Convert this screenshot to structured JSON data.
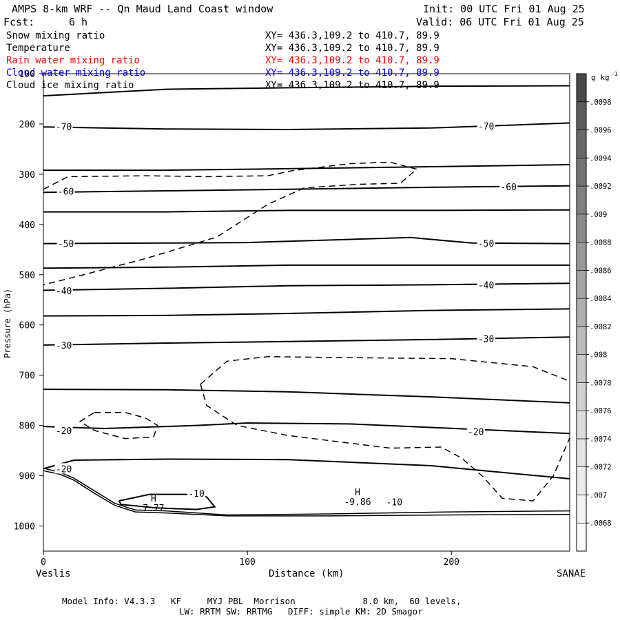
{
  "header": {
    "title": "AMPS 8-km WRF -- Qn Maud Land Coast window",
    "init": "Init: 00 UTC Fri 01 Aug 25",
    "fcst_label": "Fcst:",
    "fcst_value": "6 h",
    "valid": "Valid: 06 UTC Fri 01 Aug 25"
  },
  "fields": [
    {
      "name": "Snow mixing ratio",
      "xy": "XY= 436.3,109.2 to 410.7, 89.9",
      "color": "#000000"
    },
    {
      "name": "Temperature",
      "xy": "XY= 436.3,109.2 to 410.7, 89.9",
      "color": "#000000"
    },
    {
      "name": "Rain water mixing ratio",
      "xy": "XY= 436.3,109.2 to 410.7, 89.9",
      "color": "#ff0000"
    },
    {
      "name": "Cloud water mixing ratio",
      "xy": "XY= 436.3,109.2 to 410.7, 89.9",
      "color": "#0000ff"
    },
    {
      "name": "Cloud ice mixing ratio",
      "xy": "XY= 436.3,109.2 to 410.7, 89.9",
      "color": "#000000"
    }
  ],
  "chart_data": {
    "type": "line",
    "title": "",
    "xlabel": "Distance (km)",
    "ylabel": "Pressure (hPa)",
    "xlim": [
      0,
      258
    ],
    "ylim": [
      1050,
      100
    ],
    "x_ticks": [
      0,
      100,
      200
    ],
    "y_ticks": [
      100,
      200,
      300,
      400,
      500,
      600,
      700,
      800,
      900,
      1000
    ],
    "x_endpoints": {
      "left": "Veslis",
      "right": "SANAE"
    },
    "temperature_isotherms": [
      {
        "label": "-70",
        "points": [
          [
            0,
            144
          ],
          [
            60,
            131
          ],
          [
            120,
            128
          ],
          [
            190,
            125
          ],
          [
            258,
            124
          ]
        ]
      },
      {
        "label": "-70",
        "points": [
          [
            0,
            206
          ],
          [
            60,
            210
          ],
          [
            120,
            211
          ],
          [
            190,
            208
          ],
          [
            258,
            198
          ]
        ]
      },
      {
        "label": "",
        "points": [
          [
            0,
            292
          ],
          [
            60,
            292
          ],
          [
            120,
            289
          ],
          [
            190,
            285
          ],
          [
            258,
            281
          ]
        ]
      },
      {
        "label": "-60",
        "points": [
          [
            0,
            336
          ],
          [
            60,
            333
          ],
          [
            120,
            330
          ],
          [
            190,
            326
          ],
          [
            258,
            323
          ]
        ]
      },
      {
        "label": "",
        "points": [
          [
            0,
            375
          ],
          [
            60,
            375
          ],
          [
            120,
            372
          ],
          [
            190,
            372
          ],
          [
            258,
            371
          ]
        ]
      },
      {
        "label": "-50",
        "points": [
          [
            0,
            438
          ],
          [
            60,
            437
          ],
          [
            100,
            436
          ],
          [
            180,
            426
          ],
          [
            210,
            437
          ],
          [
            258,
            438
          ]
        ]
      },
      {
        "label": "",
        "points": [
          [
            0,
            487
          ],
          [
            60,
            485
          ],
          [
            120,
            481
          ],
          [
            190,
            481
          ],
          [
            258,
            481
          ]
        ]
      },
      {
        "label": "-40",
        "points": [
          [
            0,
            531
          ],
          [
            60,
            527
          ],
          [
            120,
            522
          ],
          [
            190,
            520
          ],
          [
            258,
            517
          ]
        ]
      },
      {
        "label": "",
        "points": [
          [
            0,
            582
          ],
          [
            60,
            581
          ],
          [
            120,
            577
          ],
          [
            190,
            571
          ],
          [
            258,
            568
          ]
        ]
      },
      {
        "label": "-30",
        "points": [
          [
            0,
            640
          ],
          [
            60,
            636
          ],
          [
            120,
            633
          ],
          [
            190,
            629
          ],
          [
            258,
            624
          ]
        ]
      },
      {
        "label": "",
        "points": [
          [
            0,
            728
          ],
          [
            60,
            729
          ],
          [
            120,
            733
          ],
          [
            190,
            743
          ],
          [
            258,
            755
          ]
        ]
      },
      {
        "label": "-20",
        "points": [
          [
            0,
            802
          ],
          [
            30,
            806
          ],
          [
            75,
            800
          ],
          [
            100,
            795
          ],
          [
            150,
            797
          ],
          [
            190,
            804
          ],
          [
            258,
            816
          ]
        ]
      },
      {
        "label": "-20",
        "points": [
          [
            0,
            886
          ],
          [
            15,
            869
          ],
          [
            60,
            867
          ],
          [
            120,
            868
          ],
          [
            190,
            880
          ],
          [
            258,
            906
          ]
        ]
      }
    ],
    "temperature_closed": [
      {
        "label": "-10",
        "points": [
          [
            37,
            950
          ],
          [
            52,
            937
          ],
          [
            70,
            937
          ],
          [
            80,
            942
          ],
          [
            84,
            962
          ],
          [
            75,
            967
          ],
          [
            55,
            964
          ],
          [
            38,
            957
          ],
          [
            37,
            950
          ]
        ]
      }
    ],
    "surface_lines": [
      {
        "points": [
          [
            0,
            885
          ],
          [
            8,
            893
          ],
          [
            15,
            905
          ],
          [
            25,
            930
          ],
          [
            35,
            955
          ],
          [
            45,
            968
          ],
          [
            60,
            970
          ],
          [
            90,
            978
          ],
          [
            140,
            976
          ],
          [
            200,
            972
          ],
          [
            258,
            970
          ]
        ]
      },
      {
        "points": [
          [
            0,
            890
          ],
          [
            8,
            897
          ],
          [
            15,
            909
          ],
          [
            25,
            935
          ],
          [
            35,
            959
          ],
          [
            45,
            972
          ],
          [
            60,
            974
          ],
          [
            90,
            980
          ],
          [
            140,
            980
          ],
          [
            200,
            978
          ],
          [
            258,
            977
          ]
        ]
      }
    ],
    "snow_contours_dashed": [
      {
        "points": [
          [
            0,
            330
          ],
          [
            12,
            305
          ],
          [
            50,
            303
          ],
          [
            80,
            305
          ],
          [
            110,
            303
          ],
          [
            122,
            293
          ],
          [
            150,
            279
          ],
          [
            170,
            276
          ],
          [
            183,
            290
          ],
          [
            175,
            318
          ],
          [
            155,
            320
          ],
          [
            128,
            327
          ],
          [
            110,
            360
          ],
          [
            85,
            425
          ],
          [
            50,
            468
          ],
          [
            15,
            505
          ],
          [
            0,
            520
          ]
        ]
      },
      {
        "points": [
          [
            25,
            774
          ],
          [
            40,
            774
          ],
          [
            50,
            785
          ],
          [
            56,
            800
          ],
          [
            54,
            823
          ],
          [
            40,
            826
          ],
          [
            25,
            810
          ],
          [
            18,
            792
          ],
          [
            25,
            774
          ]
        ]
      },
      {
        "points": [
          [
            77,
            718
          ],
          [
            90,
            672
          ],
          [
            110,
            663
          ],
          [
            150,
            665
          ],
          [
            200,
            667
          ],
          [
            240,
            683
          ],
          [
            258,
            712
          ]
        ]
      },
      {
        "points": [
          [
            77,
            718
          ],
          [
            80,
            760
          ],
          [
            95,
            800
          ],
          [
            120,
            820
          ],
          [
            150,
            835
          ],
          [
            170,
            845
          ],
          [
            195,
            843
          ],
          [
            205,
            865
          ],
          [
            215,
            900
          ],
          [
            225,
            945
          ],
          [
            240,
            950
          ],
          [
            250,
            900
          ],
          [
            258,
            825
          ]
        ]
      }
    ],
    "labels": [
      {
        "text": "-70",
        "x": 10,
        "p": 205
      },
      {
        "text": "-70",
        "x": 217,
        "p": 204
      },
      {
        "text": "-60",
        "x": 11,
        "p": 334
      },
      {
        "text": "-60",
        "x": 228,
        "p": 325
      },
      {
        "text": "-50",
        "x": 11,
        "p": 438
      },
      {
        "text": "-50",
        "x": 217,
        "p": 437
      },
      {
        "text": "-40",
        "x": 10,
        "p": 532
      },
      {
        "text": "-40",
        "x": 217,
        "p": 520
      },
      {
        "text": "-30",
        "x": 10,
        "p": 640
      },
      {
        "text": "-30",
        "x": 217,
        "p": 627
      },
      {
        "text": "-20",
        "x": 10,
        "p": 810
      },
      {
        "text": "-20",
        "x": 212,
        "p": 812
      },
      {
        "text": "-20",
        "x": 10,
        "p": 886
      },
      {
        "text": "-10",
        "x": 75,
        "p": 935
      },
      {
        "text": "-10",
        "x": 172,
        "p": 952
      }
    ],
    "extrema": [
      {
        "symbol": "H",
        "value": "7.77",
        "x": 55,
        "p": 954
      },
      {
        "symbol": "H",
        "value": "-9.86",
        "x": 155,
        "p": 942
      }
    ],
    "colorbar": {
      "unit": "g kg",
      "unit_sup": "-1",
      "levels": [
        "0.0068",
        "0.007",
        "0.0072",
        "0.0074",
        "0.0076",
        "0.0078",
        "0.008",
        "0.0082",
        "0.0084",
        "0.0086",
        "0.0088",
        "0.009",
        "0.0092",
        "0.0094",
        "0.0096",
        "0.0098"
      ],
      "tick_labels": [
        ".0068",
        ".007",
        ".0072",
        ".0074",
        ".0076",
        ".0078",
        ".008",
        ".0082",
        ".0084",
        ".0086",
        ".0088",
        ".009",
        ".0092",
        ".0094",
        ".0096",
        ".0098"
      ],
      "colors": [
        "#ffffff",
        "#f4f4f4",
        "#ececec",
        "#e4e4e4",
        "#dcdcdc",
        "#d2d2d2",
        "#c8c8c8",
        "#bcbcbc",
        "#b0b0b0",
        "#a4a4a4",
        "#989898",
        "#8c8c8c",
        "#808080",
        "#747474",
        "#686868",
        "#5c5c5c",
        "#484848"
      ]
    }
  },
  "footer": {
    "line1": "Model Info: V4.3.3   KF     MYJ PBL  Morrison             8.0 km,  60 levels,",
    "line2": "LW: RRTM SW: RRTMG   DIFF: simple KM: 2D Smagor"
  }
}
